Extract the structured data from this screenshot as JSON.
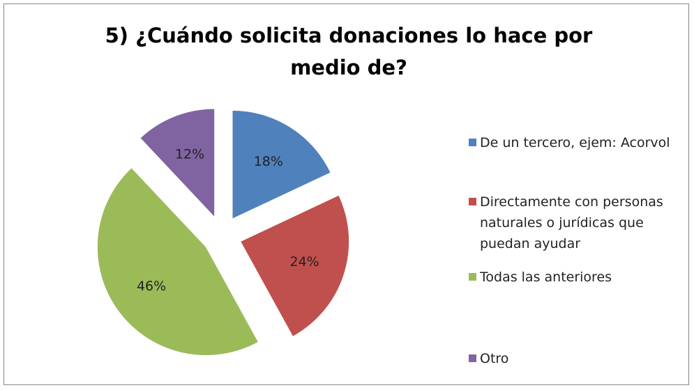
{
  "chart_data": {
    "type": "pie",
    "title": "5) ¿Cuándo solicita donaciones lo hace por medio de?",
    "categories": [
      "De un tercero, ejem: Acorvol",
      "Directamente con personas naturales o jurídicas que puedan ayudar",
      "Todas las anteriores",
      "Otro"
    ],
    "values": [
      18,
      24,
      46,
      12
    ],
    "value_labels": [
      "18%",
      "24%",
      "46%",
      "12%"
    ],
    "colors": [
      "#4f81bd",
      "#c0504d",
      "#9bbb59",
      "#8064a2"
    ],
    "legend": "right"
  }
}
